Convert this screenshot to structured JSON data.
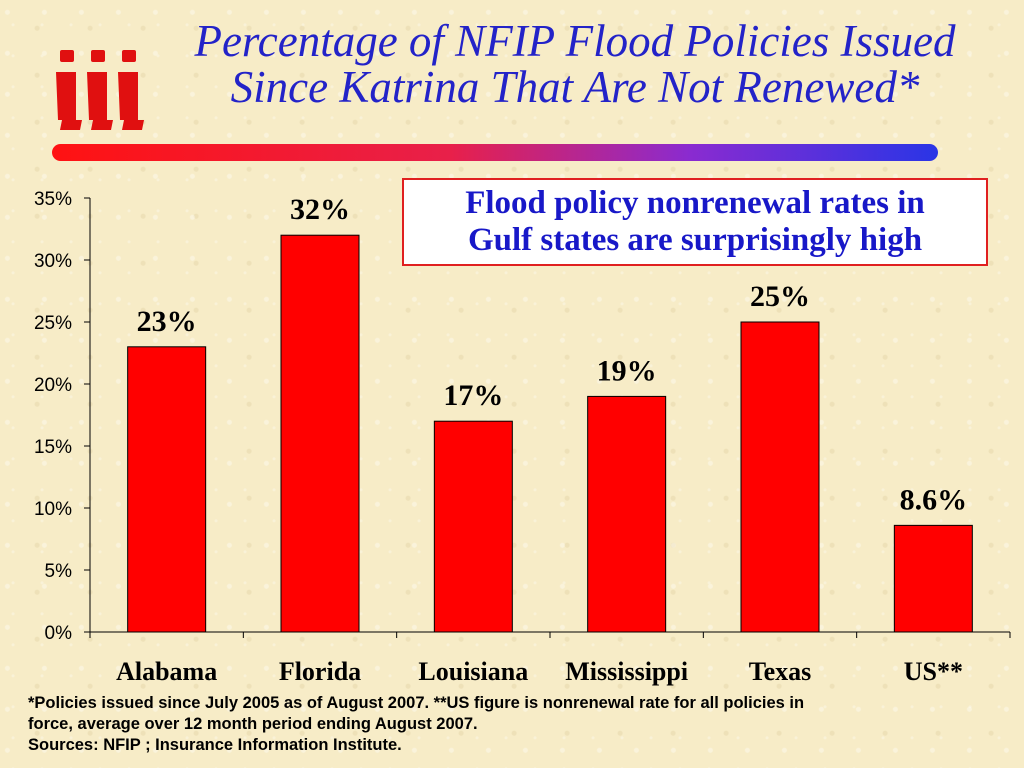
{
  "title": {
    "line1": "Percentage of NFIP Flood Policies Issued",
    "line2": "Since Katrina That Are Not Renewed*"
  },
  "logo": {
    "text": "iii",
    "icon": "iii-logo",
    "color": "#e01010"
  },
  "accent_bar": {
    "colors": [
      "#ff1212",
      "#2a35e6"
    ]
  },
  "callout": {
    "line1": "Flood policy nonrenewal rates in",
    "line2": "Gulf states are surprisingly high"
  },
  "chart_data": {
    "type": "bar",
    "categories": [
      "Alabama",
      "Florida",
      "Louisiana",
      "Mississippi",
      "Texas",
      "US**"
    ],
    "values": [
      23,
      32,
      17,
      19,
      25,
      8.6
    ],
    "data_labels": [
      "23%",
      "32%",
      "17%",
      "19%",
      "25%",
      "8.6%"
    ],
    "yticks": [
      "0%",
      "5%",
      "10%",
      "15%",
      "20%",
      "25%",
      "30%",
      "35%"
    ],
    "ylim": [
      0,
      35
    ],
    "bar_color": "#ff0000",
    "grid": false,
    "legend": "none"
  },
  "footnote": {
    "line1": "*Policies issued since July 2005 as of August 2007.   **US figure is nonrenewal rate for all policies in",
    "line2": "force, average over 12 month period ending August 2007.",
    "line3": "Sources: NFIP ; Insurance Information Institute."
  }
}
